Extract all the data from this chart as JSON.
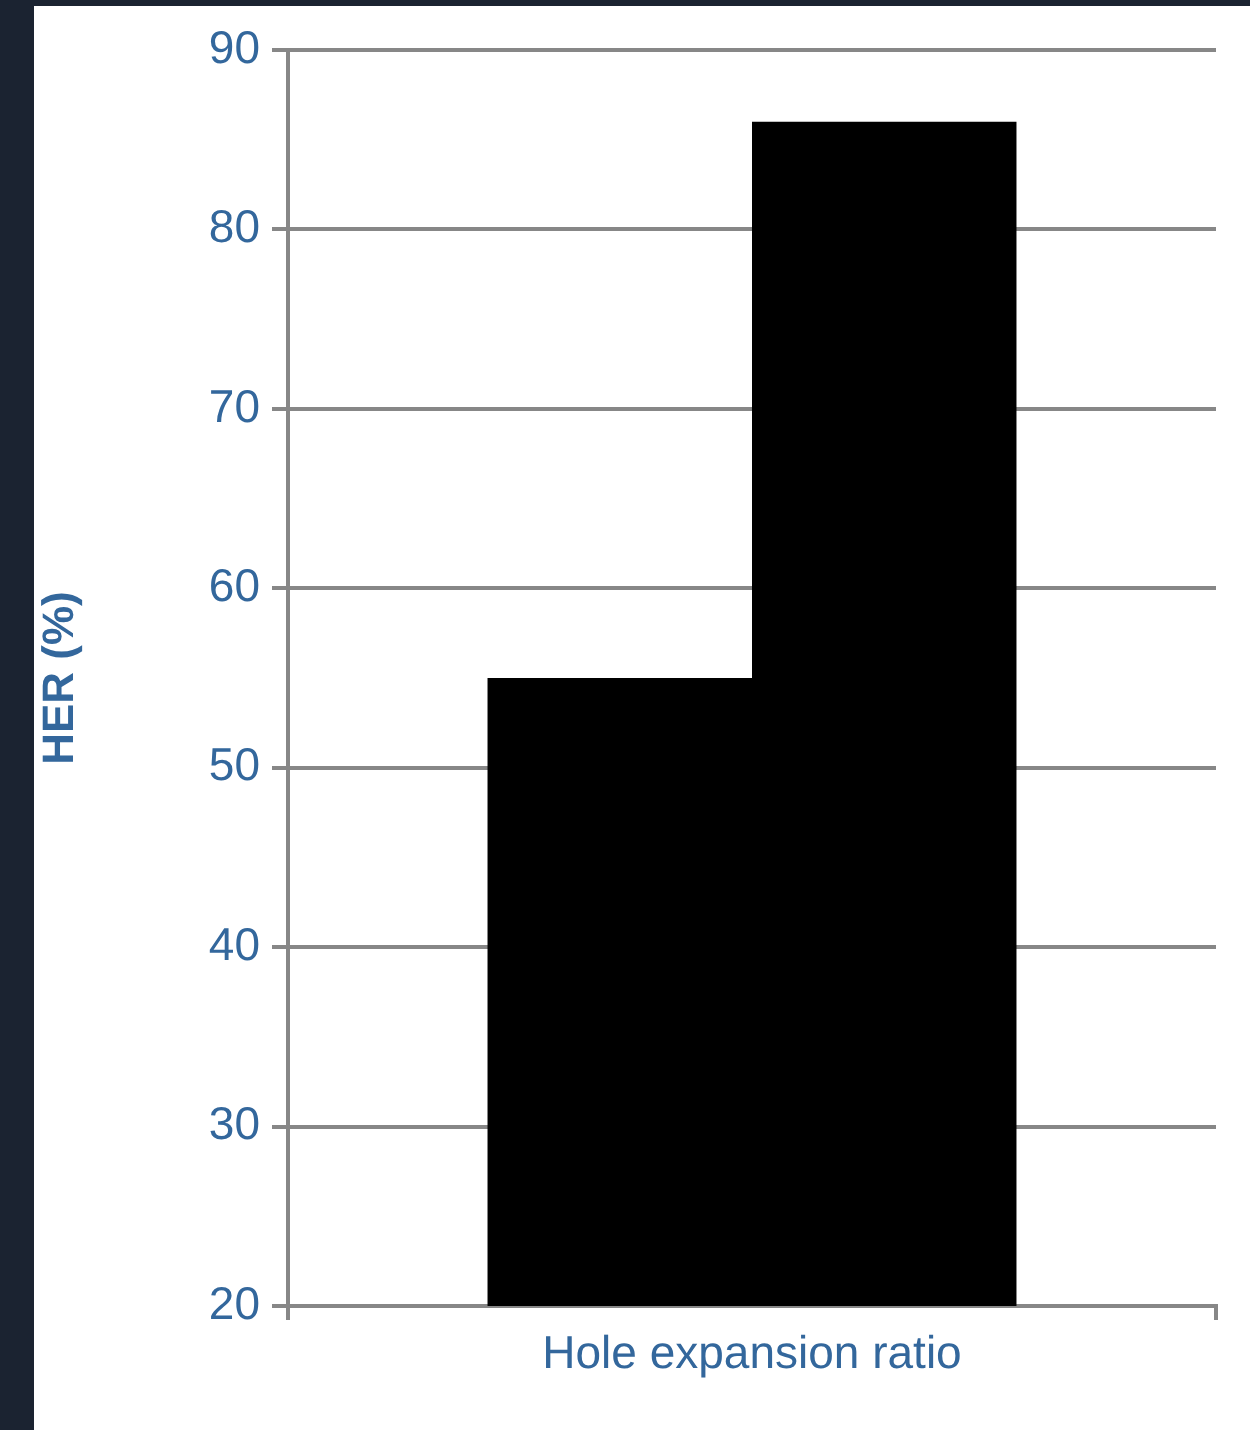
{
  "chart_data": {
    "type": "bar",
    "ylabel": "HER (%)",
    "categories": [
      "Hole expansion ratio"
    ],
    "series": [
      {
        "color": "#000000",
        "values": [
          55
        ]
      },
      {
        "color": "#000000",
        "values": [
          86
        ]
      }
    ],
    "ylim": [
      20,
      90
    ],
    "yticks": [
      20,
      30,
      40,
      50,
      60,
      70,
      80,
      90
    ],
    "grid": "y",
    "legend": false
  }
}
